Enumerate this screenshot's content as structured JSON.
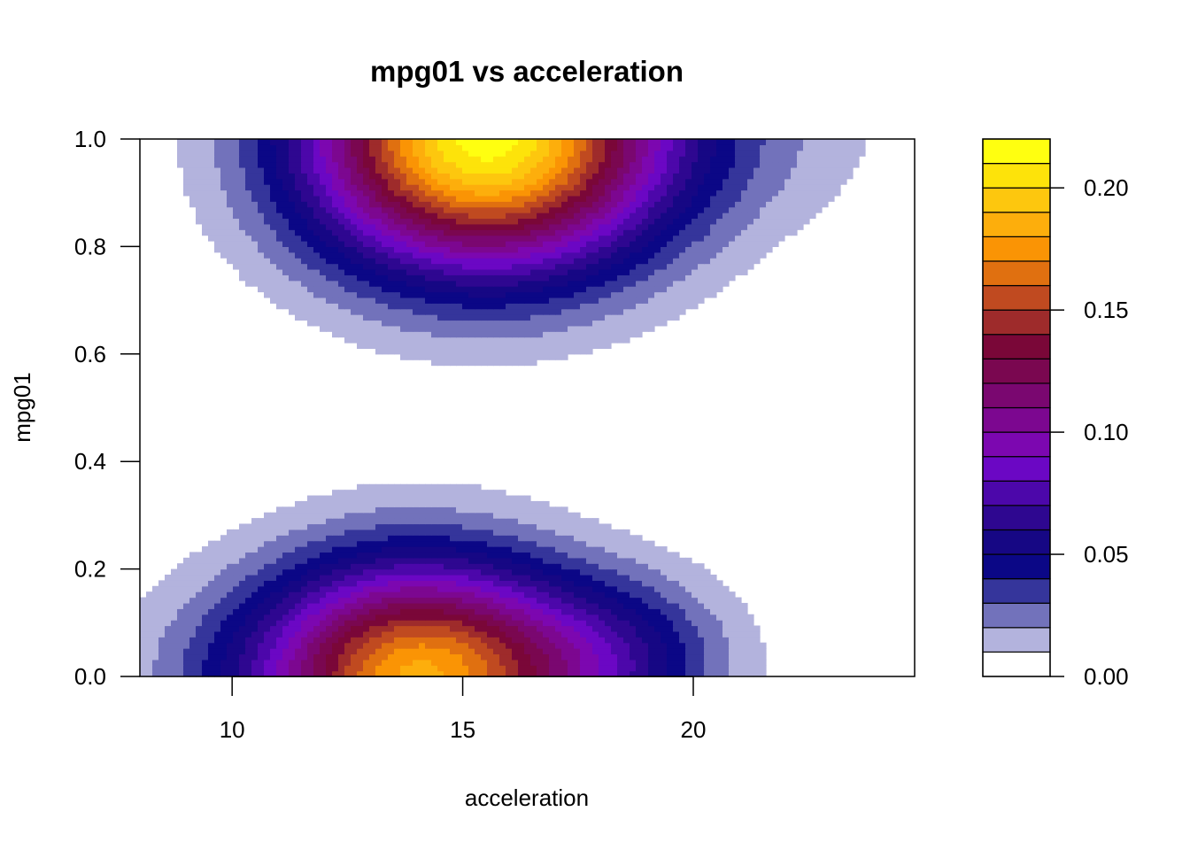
{
  "chart_data": {
    "type": "heatmap",
    "subtype": "filled-contour",
    "title": "mpg01 vs acceleration",
    "xlabel": "acceleration",
    "ylabel": "mpg01",
    "xlim": [
      8,
      24.8
    ],
    "ylim": [
      0,
      1
    ],
    "x_ticks": [
      "10",
      "15",
      "20"
    ],
    "y_ticks": [
      "0.0",
      "0.2",
      "0.4",
      "0.6",
      "0.8",
      "1.0"
    ],
    "grid": false,
    "legend": "right",
    "legend_levels": [
      0,
      0.01,
      0.02,
      0.03,
      0.04,
      0.05,
      0.06,
      0.07,
      0.08,
      0.09,
      0.1,
      0.11,
      0.12,
      0.13,
      0.14,
      0.15,
      0.16,
      0.17,
      0.18,
      0.19,
      0.2,
      0.21,
      0.22
    ],
    "legend_ticks": [
      "0.00",
      "0.05",
      "0.10",
      "0.15",
      "0.20"
    ],
    "legend_colors": [
      "#ffffff",
      "#b3b3dd",
      "#7272bb",
      "#35359b",
      "#0b0786",
      "#160784",
      "#2e0790",
      "#4c07aa",
      "#6b07c4",
      "#7c07b0",
      "#7c0790",
      "#7a0770",
      "#7a0750",
      "#7a0738",
      "#9e2b2b",
      "#c04a20",
      "#e07010",
      "#fa9405",
      "#fdae0c",
      "#fdc70e",
      "#fde30a",
      "#ffff10"
    ],
    "density_peaks": [
      {
        "acceleration": 15.5,
        "mpg01": 1.0,
        "density": 0.215
      },
      {
        "acceleration": 14.0,
        "mpg01": 0.0,
        "density": 0.18
      }
    ]
  }
}
